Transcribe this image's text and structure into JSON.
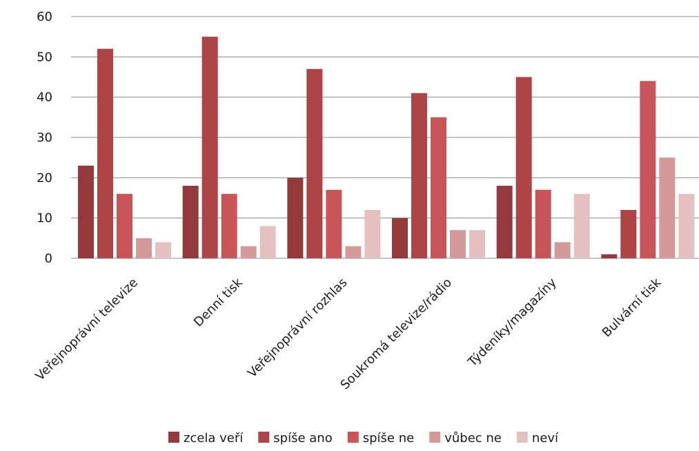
{
  "chart_data": {
    "type": "bar",
    "title": "",
    "xlabel": "",
    "ylabel": "",
    "ylim": [
      0,
      60
    ],
    "yticks": [
      0,
      10,
      20,
      30,
      40,
      50,
      60
    ],
    "grid": true,
    "legend_position": "bottom",
    "categories": [
      "Veřejnoprávní televize",
      "Denní tisk",
      "Veřejnoprávní rozhlas",
      "Soukromá televize/rádio",
      "Týdeníky/magazíny",
      "Bulvární tisk"
    ],
    "series": [
      {
        "name": "zcela veří",
        "color": "#943a3c",
        "values": [
          23,
          18,
          20,
          10,
          18,
          1
        ]
      },
      {
        "name": "spíše ano",
        "color": "#ad4446",
        "values": [
          52,
          55,
          47,
          41,
          45,
          12
        ]
      },
      {
        "name": "spíše ne",
        "color": "#c85558",
        "values": [
          16,
          16,
          17,
          35,
          17,
          44
        ]
      },
      {
        "name": "vůbec ne",
        "color": "#d49a9b",
        "values": [
          5,
          3,
          3,
          7,
          4,
          25
        ]
      },
      {
        "name": "neví",
        "color": "#e5c0c1",
        "values": [
          4,
          8,
          12,
          7,
          16,
          16
        ]
      }
    ]
  }
}
